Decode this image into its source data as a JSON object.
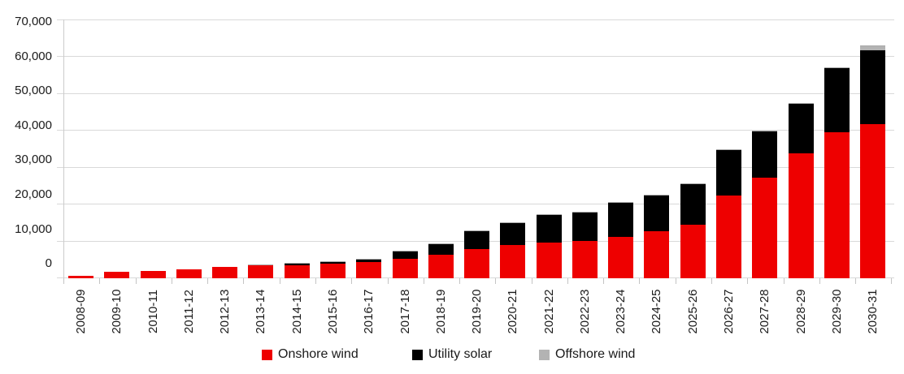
{
  "chart_data": {
    "type": "bar",
    "stacked": true,
    "title": "",
    "xlabel": "",
    "ylabel": "",
    "ylim": [
      0,
      70000
    ],
    "grid": "horizontal",
    "legend_position": "bottom",
    "y_tick_labels": [
      "70,000",
      "60,000",
      "50,000",
      "40,000",
      "30,000",
      "20,000",
      "10,000",
      "0"
    ],
    "categories": [
      "2008-09",
      "2009-10",
      "2010-11",
      "2011-12",
      "2012-13",
      "2013-14",
      "2014-15",
      "2015-16",
      "2016-17",
      "2017-18",
      "2018-19",
      "2019-20",
      "2020-21",
      "2021-22",
      "2022-23",
      "2023-24",
      "2024-25",
      "2025-26",
      "2026-27",
      "2027-28",
      "2028-29",
      "2029-30",
      "2030-31"
    ],
    "series": [
      {
        "name": "Onshore wind",
        "color": "#ee0000",
        "values": [
          700,
          1750,
          2000,
          2400,
          3100,
          3500,
          3500,
          4050,
          4450,
          5300,
          6400,
          8000,
          9100,
          9750,
          10100,
          11200,
          12800,
          14500,
          22400,
          27300,
          33900,
          39400,
          41800
        ]
      },
      {
        "name": "Utility solar",
        "color": "#000000",
        "values": [
          0,
          0,
          0,
          0,
          0,
          300,
          650,
          500,
          900,
          2200,
          3100,
          5000,
          6000,
          7650,
          8000,
          9500,
          9700,
          11250,
          12600,
          12550,
          13450,
          17600,
          19800
        ]
      },
      {
        "name": "Offshore wind",
        "color": "#b3b3b3",
        "values": [
          0,
          0,
          0,
          0,
          0,
          0,
          0,
          0,
          0,
          0,
          0,
          0,
          0,
          0,
          0,
          0,
          0,
          0,
          0,
          0,
          0,
          0,
          1400
        ]
      }
    ]
  },
  "colors": {
    "gridline": "#d9d9d9",
    "axis": "#c4c4c4",
    "text": "#1a1a1a"
  }
}
